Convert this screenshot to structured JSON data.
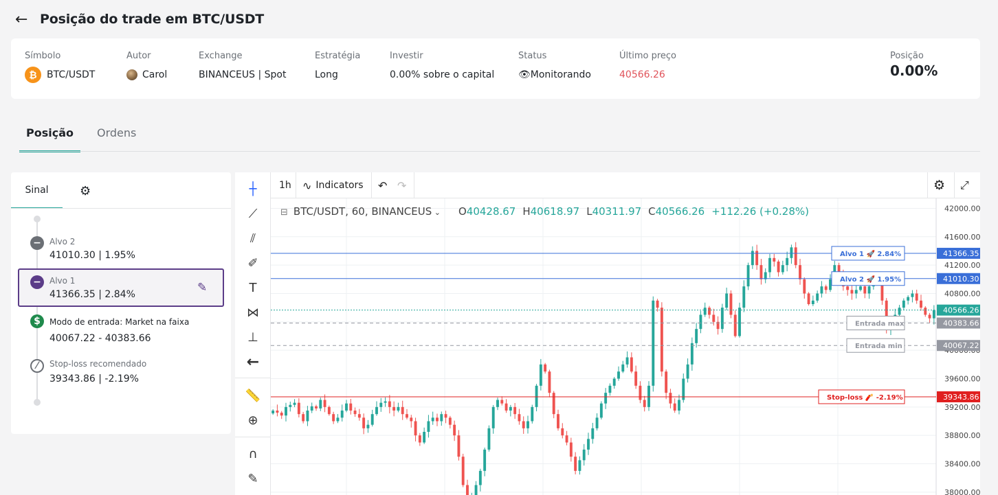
{
  "header": {
    "title": "Posição do trade em BTC/USDT",
    "back_icon": "arrow-left-icon"
  },
  "summary": {
    "symbol": {
      "label": "Símbolo",
      "value": "BTC/USDT",
      "icon_text": "₿"
    },
    "author": {
      "label": "Autor",
      "value": "Carol"
    },
    "exchange": {
      "label": "Exchange",
      "value": "BINANCEUS | Spot"
    },
    "strategy": {
      "label": "Estratégia",
      "value": "Long"
    },
    "invest": {
      "label": "Investir",
      "value": "0.00% sobre o capital"
    },
    "status": {
      "label": "Status",
      "value": "Monitorando",
      "icon": "👁"
    },
    "last_price": {
      "label": "Último preço",
      "value": "40566.26",
      "color": "#e0535a"
    },
    "position": {
      "label": "Posição",
      "value": "0.00%"
    }
  },
  "tabs": [
    {
      "label": "Posição",
      "active": true
    },
    {
      "label": "Ordens",
      "active": false
    }
  ],
  "signal_panel": {
    "tab_label": "Sinal",
    "items": [
      {
        "label": "Alvo 2",
        "value": "41010.30 | 1.95%"
      },
      {
        "label": "Alvo 1",
        "value": "41366.35 | 2.84%"
      },
      {
        "label": "Modo de entrada: Market na faixa",
        "value": "40067.22 - 40383.66",
        "icon_text": "$"
      },
      {
        "label": "Stop-loss recomendado",
        "value": "39343.86 | -2.19%"
      }
    ]
  },
  "toolbar": {
    "interval": "1h",
    "indicators_label": "Indicators"
  },
  "legend": {
    "symbol": "BTC/USDT, 60, BINANCEUS",
    "o_label": "O",
    "o": "40428.67",
    "h_label": "H",
    "h": "40618.97",
    "l_label": "L",
    "l": "40311.97",
    "c_label": "C",
    "c": "40566.26",
    "change": "+112.26 (+0.28%)"
  },
  "chart_data": {
    "type": "candlestick",
    "symbol": "BTC/USDT",
    "interval": "60",
    "exchange": "BINANCEUS",
    "ylim": [
      37960,
      42140
    ],
    "y_ticks": [
      42000,
      41600,
      41200,
      40800,
      40400,
      40000,
      39600,
      39200,
      38800,
      38400,
      38000
    ],
    "y_tick_labels": [
      "42000.00",
      "41600.00",
      "41200.00",
      "40800.00",
      "40400.00",
      "40000.00",
      "39600.00",
      "39200.00",
      "38800.00",
      "38400.00",
      "38000.00"
    ],
    "levels": [
      {
        "label": "Alvo 1 🚀 2.84%",
        "price": 41366.35,
        "price_label": "41366.35",
        "color": "#3a6fd8",
        "style": "solid"
      },
      {
        "label": "Alvo 2 🚀 1.95%",
        "price": 41010.3,
        "price_label": "41010.30",
        "color": "#3a6fd8",
        "style": "solid"
      },
      {
        "label": "",
        "price": 40566.26,
        "price_label": "40566.26",
        "color": "#26a69a",
        "style": "dotted"
      },
      {
        "label": "Entrada max",
        "price": 40383.66,
        "price_label": "40383.66",
        "color": "#9598a1",
        "style": "dashed"
      },
      {
        "label": "Entrada min",
        "price": 40067.22,
        "price_label": "40067.22",
        "color": "#9598a1",
        "style": "dashed"
      },
      {
        "label": "Stop-loss 🧨 -2.19%",
        "price": 39343.86,
        "price_label": "39343.86",
        "color": "#e02020",
        "style": "solid"
      }
    ],
    "closes": [
      39150,
      39120,
      39080,
      39200,
      39230,
      39260,
      39100,
      39000,
      39150,
      39210,
      39180,
      39300,
      39200,
      39100,
      39000,
      39050,
      39150,
      39250,
      39150,
      39100,
      39050,
      38900,
      38950,
      39100,
      39200,
      39260,
      39280,
      39200,
      39150,
      39200,
      39100,
      39050,
      39000,
      38800,
      38700,
      38850,
      39000,
      39050,
      39000,
      39100,
      39050,
      38950,
      38800,
      38500,
      38100,
      37900,
      37950,
      38100,
      38300,
      38600,
      38900,
      39200,
      39300,
      39250,
      39150,
      39200,
      39100,
      39000,
      38900,
      39000,
      39200,
      39500,
      39800,
      39700,
      39400,
      39100,
      38900,
      38800,
      38700,
      38500,
      38300,
      38450,
      38600,
      38750,
      38900,
      39050,
      39250,
      39400,
      39500,
      39600,
      39700,
      39800,
      39900,
      39700,
      39500,
      39300,
      39200,
      39500,
      40700,
      40600,
      39700,
      39400,
      39250,
      39150,
      39300,
      39600,
      39800,
      40100,
      40300,
      40500,
      40600,
      40500,
      40400,
      40300,
      40600,
      40800,
      40500,
      40200,
      40600,
      40900,
      41200,
      41400,
      41200,
      41000,
      41100,
      41300,
      41250,
      41100,
      41200,
      41300,
      41450,
      41200,
      41000,
      40800,
      40650,
      40700,
      40800,
      40900,
      40850,
      41000,
      41200,
      41100,
      40900,
      40850,
      40800,
      40850,
      40900,
      40800,
      40900,
      40950,
      41000,
      40700,
      40300,
      40450,
      40500,
      40600,
      40700,
      40750,
      40800,
      40700,
      40600,
      40500,
      40450,
      40566
    ]
  }
}
